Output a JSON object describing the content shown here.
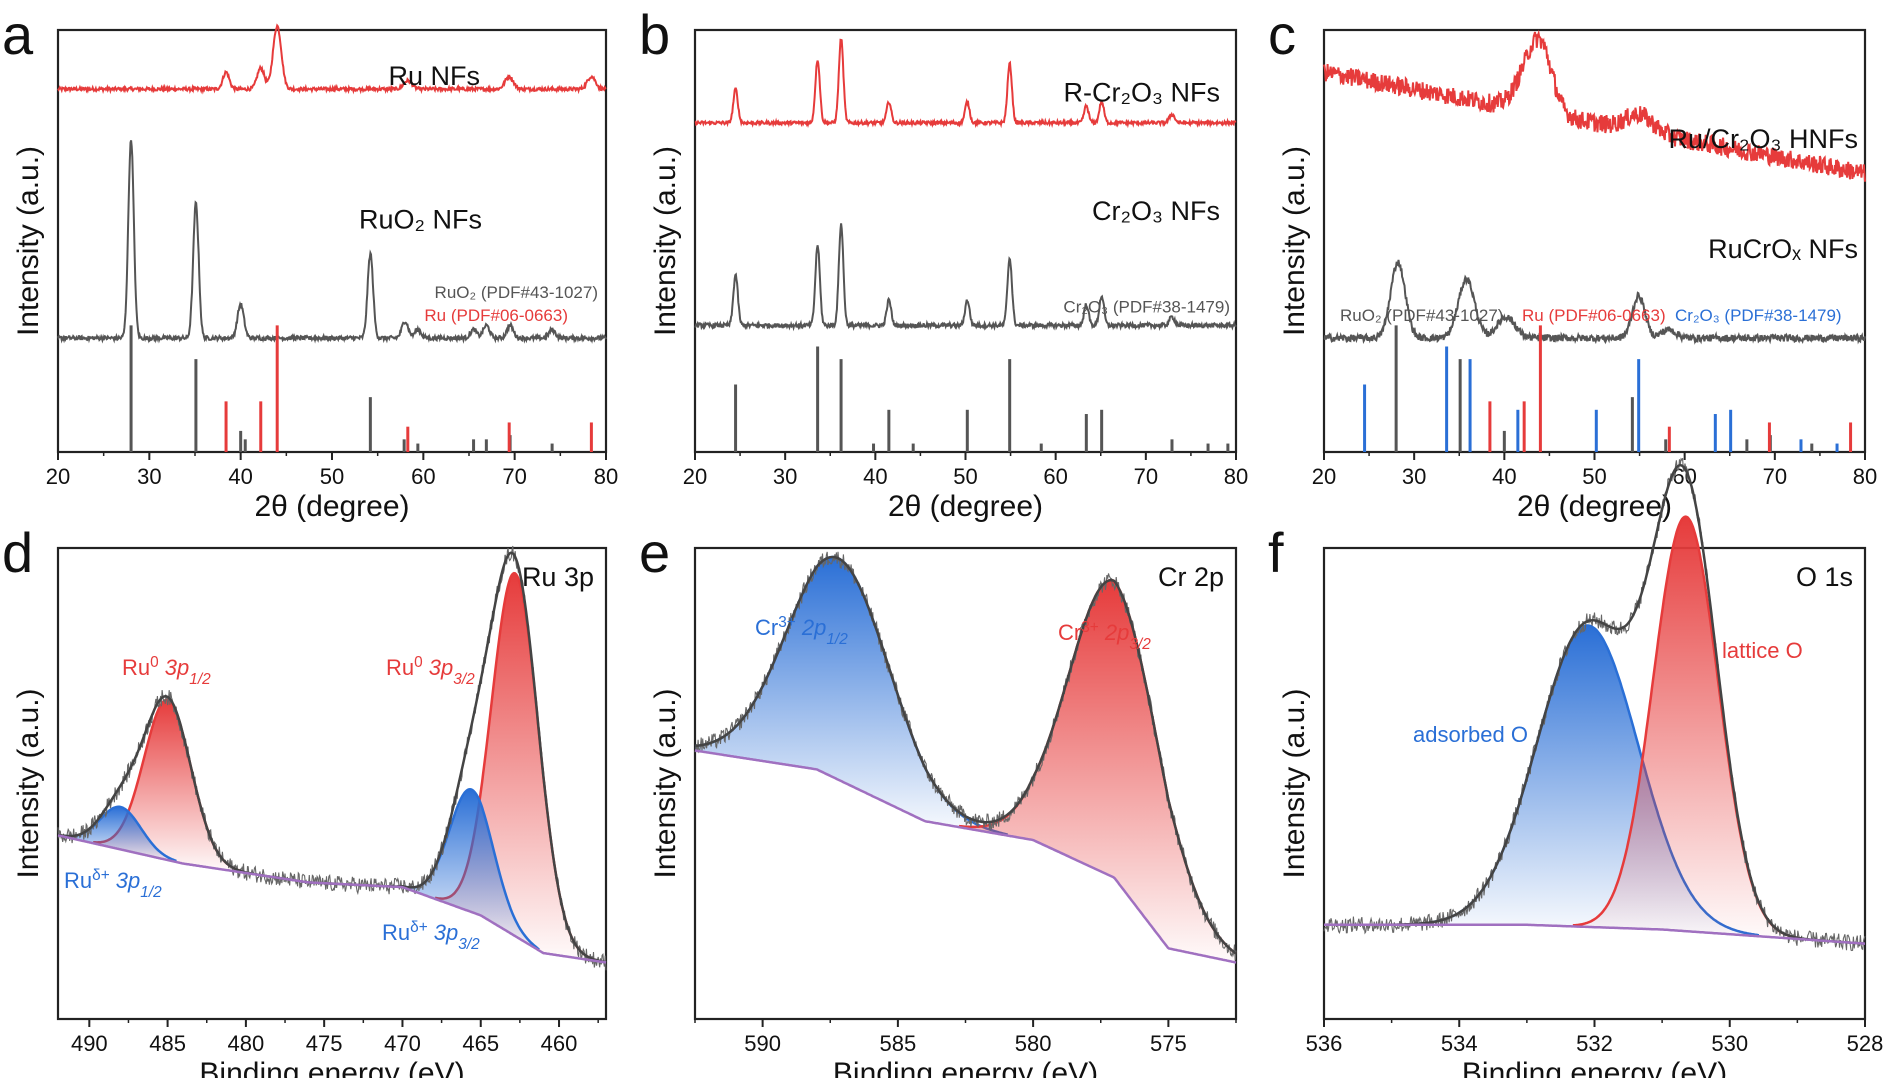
{
  "chart_data": [
    {
      "panel_label": "a",
      "type": "line",
      "xlabel": "2θ (degree)",
      "ylabel": "Intensity (a.u.)",
      "xlim": [
        20,
        80
      ],
      "xticks": [
        "20",
        "30",
        "40",
        "50",
        "60",
        "70",
        "80"
      ],
      "series": [
        {
          "name": "Ru NFs",
          "color": "#e63b3b",
          "baseline": 0.86,
          "peaks": [
            [
              38.4,
              0.04,
              0.35
            ],
            [
              42.2,
              0.05,
              0.4
            ],
            [
              44.0,
              0.15,
              0.45
            ],
            [
              58.3,
              0.02,
              0.45
            ],
            [
              69.4,
              0.03,
              0.45
            ],
            [
              78.4,
              0.03,
              0.45
            ]
          ]
        },
        {
          "name": "RuO₂ NFs",
          "color": "#555555",
          "baseline": 0.27,
          "peaks": [
            [
              28.0,
              0.47,
              0.3
            ],
            [
              35.1,
              0.32,
              0.3
            ],
            [
              40.0,
              0.08,
              0.35
            ],
            [
              54.2,
              0.2,
              0.3
            ],
            [
              58.0,
              0.04,
              0.35
            ],
            [
              59.4,
              0.02,
              0.35
            ],
            [
              65.5,
              0.02,
              0.35
            ],
            [
              66.9,
              0.03,
              0.35
            ],
            [
              69.5,
              0.03,
              0.35
            ],
            [
              74.1,
              0.02,
              0.35
            ]
          ]
        }
      ],
      "references": [
        {
          "name": "RuO₂  (PDF#43-1027)",
          "color": "#555555",
          "lines": [
            [
              28.0,
              0.3
            ],
            [
              35.1,
              0.22
            ],
            [
              40.0,
              0.05
            ],
            [
              40.5,
              0.03
            ],
            [
              54.2,
              0.13
            ],
            [
              57.9,
              0.03
            ],
            [
              59.4,
              0.02
            ],
            [
              65.5,
              0.03
            ],
            [
              66.9,
              0.03
            ],
            [
              69.5,
              0.04
            ],
            [
              74.1,
              0.02
            ]
          ]
        },
        {
          "name": "Ru (PDF#06-0663)",
          "color": "#e63b3b",
          "lines": [
            [
              38.4,
              0.12
            ],
            [
              42.2,
              0.12
            ],
            [
              44.0,
              0.3
            ],
            [
              58.3,
              0.06
            ],
            [
              69.4,
              0.07
            ],
            [
              78.4,
              0.07
            ]
          ]
        }
      ]
    },
    {
      "panel_label": "b",
      "type": "line",
      "xlabel": "2θ (degree)",
      "ylabel": "Intensity (a.u.)",
      "xlim": [
        20,
        80
      ],
      "xticks": [
        "20",
        "30",
        "40",
        "50",
        "60",
        "70",
        "80"
      ],
      "series": [
        {
          "name": "R-Cr₂O₃ NFs",
          "color": "#e63b3b",
          "baseline": 0.78,
          "peaks": [
            [
              24.5,
              0.08,
              0.25
            ],
            [
              33.6,
              0.15,
              0.25
            ],
            [
              36.2,
              0.2,
              0.25
            ],
            [
              41.5,
              0.05,
              0.25
            ],
            [
              50.2,
              0.05,
              0.25
            ],
            [
              54.9,
              0.14,
              0.25
            ],
            [
              63.4,
              0.04,
              0.25
            ],
            [
              65.1,
              0.05,
              0.25
            ],
            [
              72.9,
              0.02,
              0.3
            ]
          ]
        },
        {
          "name": "Cr₂O₃ NFs",
          "color": "#555555",
          "baseline": 0.3,
          "peaks": [
            [
              24.5,
              0.12,
              0.25
            ],
            [
              33.6,
              0.19,
              0.25
            ],
            [
              36.2,
              0.24,
              0.25
            ],
            [
              41.5,
              0.06,
              0.25
            ],
            [
              50.2,
              0.06,
              0.25
            ],
            [
              54.9,
              0.16,
              0.25
            ],
            [
              63.4,
              0.05,
              0.25
            ],
            [
              65.1,
              0.07,
              0.25
            ],
            [
              72.9,
              0.02,
              0.3
            ]
          ]
        }
      ],
      "references": [
        {
          "name": "Cr₂O₃ (PDF#38-1479)",
          "color": "#555555",
          "lines": [
            [
              24.5,
              0.16
            ],
            [
              33.6,
              0.25
            ],
            [
              36.2,
              0.22
            ],
            [
              39.8,
              0.02
            ],
            [
              41.5,
              0.1
            ],
            [
              44.2,
              0.02
            ],
            [
              50.2,
              0.1
            ],
            [
              54.9,
              0.22
            ],
            [
              58.4,
              0.02
            ],
            [
              63.4,
              0.09
            ],
            [
              65.1,
              0.1
            ],
            [
              72.9,
              0.03
            ],
            [
              76.9,
              0.02
            ],
            [
              79.1,
              0.02
            ]
          ]
        }
      ]
    },
    {
      "panel_label": "c",
      "type": "line",
      "xlabel": "2θ (degree)",
      "ylabel": "Intensity (a.u.)",
      "xlim": [
        20,
        80
      ],
      "xticks": [
        "20",
        "30",
        "40",
        "50",
        "60",
        "70",
        "80"
      ],
      "series": [
        {
          "name": "Ru/Cr₂O₃ HNFs",
          "color": "#e63b3b",
          "slope_start": 0.9,
          "slope_end": 0.66,
          "peaks": [
            [
              44.0,
              0.16,
              1.3
            ],
            [
              42.0,
              0.05,
              1.2
            ],
            [
              55.0,
              0.04,
              1.5
            ]
          ]
        },
        {
          "name": "RuCrOₓ NFs",
          "color": "#555555",
          "baseline": 0.27,
          "peaks": [
            [
              28.2,
              0.18,
              0.8
            ],
            [
              35.8,
              0.14,
              0.9
            ],
            [
              40.2,
              0.05,
              1.0
            ],
            [
              54.9,
              0.1,
              0.7
            ],
            [
              58.2,
              0.02,
              0.8
            ]
          ]
        }
      ],
      "references": [
        {
          "name": "RuO₂  (PDF#43-1027)",
          "color": "#555555",
          "lines": [
            [
              28.0,
              0.3
            ],
            [
              35.1,
              0.22
            ],
            [
              40.0,
              0.05
            ],
            [
              54.2,
              0.13
            ],
            [
              57.9,
              0.03
            ],
            [
              66.9,
              0.03
            ],
            [
              69.5,
              0.04
            ],
            [
              74.1,
              0.02
            ]
          ]
        },
        {
          "name": "Ru (PDF#06-0663)",
          "color": "#e63b3b",
          "lines": [
            [
              38.4,
              0.12
            ],
            [
              42.2,
              0.12
            ],
            [
              44.0,
              0.3
            ],
            [
              58.3,
              0.06
            ],
            [
              69.4,
              0.07
            ],
            [
              78.4,
              0.07
            ]
          ]
        },
        {
          "name": "Cr₂O₃ (PDF#38-1479)",
          "color": "#2a6fd6",
          "lines": [
            [
              24.5,
              0.16
            ],
            [
              33.6,
              0.25
            ],
            [
              36.2,
              0.22
            ],
            [
              41.5,
              0.1
            ],
            [
              50.2,
              0.1
            ],
            [
              54.9,
              0.22
            ],
            [
              63.4,
              0.09
            ],
            [
              65.1,
              0.1
            ],
            [
              72.9,
              0.03
            ],
            [
              76.9,
              0.02
            ]
          ]
        }
      ]
    },
    {
      "panel_label": "d",
      "type": "line",
      "title": "Ru 3p",
      "xlabel": "Binding energy (eV)",
      "ylabel": "Intensity (a.u.)",
      "xlim": [
        492,
        457
      ],
      "xticks": [
        "490",
        "485",
        "480",
        "475",
        "470",
        "465",
        "460"
      ],
      "background": {
        "color": "#a070c0",
        "points": [
          [
            492,
            0.39
          ],
          [
            484,
            0.33
          ],
          [
            476,
            0.29
          ],
          [
            470,
            0.28
          ],
          [
            465,
            0.22
          ],
          [
            461,
            0.14
          ],
          [
            457,
            0.12
          ]
        ]
      },
      "components": [
        {
          "label": "Ru⁰ 3p1/2",
          "color": "#e63b3b",
          "center": 485.0,
          "height": 0.34,
          "width": 1.5
        },
        {
          "label": "Ruδ+ 3p1/2",
          "color": "#2a6fd6",
          "center": 488.0,
          "height": 0.09,
          "width": 1.3
        },
        {
          "label": "Ru⁰ 3p3/2",
          "color": "#e63b3b",
          "center": 462.8,
          "height": 0.77,
          "width": 1.5
        },
        {
          "label": "Ruδ+ 3p3/2",
          "color": "#2a6fd6",
          "center": 465.6,
          "height": 0.26,
          "width": 1.4
        }
      ]
    },
    {
      "panel_label": "e",
      "type": "line",
      "title": "Cr 2p",
      "xlabel": "Binding energy (eV)",
      "ylabel": "Intensity (a.u.)",
      "xlim": [
        592.5,
        572.5
      ],
      "xticks": [
        "590",
        "585",
        "580",
        "575"
      ],
      "background": {
        "color": "#a070c0",
        "points": [
          [
            592.5,
            0.57
          ],
          [
            588,
            0.53
          ],
          [
            584,
            0.42
          ],
          [
            580,
            0.38
          ],
          [
            577,
            0.3
          ],
          [
            575,
            0.15
          ],
          [
            572.5,
            0.12
          ]
        ]
      },
      "components": [
        {
          "label": "Cr³⁺ 2p1/2",
          "color": "#2a6fd6",
          "center": 587.2,
          "height": 0.47,
          "width": 1.9
        },
        {
          "label": "Cr³⁺ 2p3/2",
          "color": "#e63b3b",
          "center": 577.0,
          "height": 0.63,
          "width": 1.7
        }
      ]
    },
    {
      "panel_label": "f",
      "type": "line",
      "title": "O 1s",
      "xlabel": "Binding energy (eV)",
      "ylabel": "Intensity (a.u.)",
      "xlim": [
        536,
        528
      ],
      "xticks": [
        "536",
        "534",
        "532",
        "530",
        "528"
      ],
      "background": {
        "color": "#a070c0",
        "points": [
          [
            536,
            0.2
          ],
          [
            533,
            0.2
          ],
          [
            531,
            0.19
          ],
          [
            530,
            0.18
          ],
          [
            528,
            0.16
          ]
        ]
      },
      "components": [
        {
          "label": "adsorbed O",
          "color": "#2a6fd6",
          "center": 532.1,
          "height": 0.64,
          "width": 0.75
        },
        {
          "label": "lattice O",
          "color": "#e63b3b",
          "center": 530.65,
          "height": 0.88,
          "width": 0.48
        }
      ]
    }
  ]
}
